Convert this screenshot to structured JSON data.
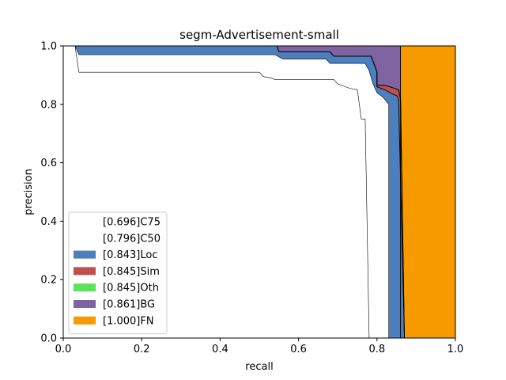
{
  "chart_data": {
    "type": "area",
    "title": "segm-Advertisement-small",
    "xlabel": "recall",
    "ylabel": "precision",
    "xlim": [
      0,
      1
    ],
    "ylim": [
      0,
      1
    ],
    "xticks": [
      "0.0",
      "0.2",
      "0.4",
      "0.6",
      "0.8",
      "1.0"
    ],
    "yticks": [
      "0.0",
      "0.2",
      "0.4",
      "0.6",
      "0.8",
      "1.0"
    ],
    "grid": false,
    "legend_position": "lower-left",
    "series": [
      {
        "name": "[0.696]C75",
        "fill": "#ffffff",
        "curve": [
          [
            0.03,
            1.0
          ],
          [
            0.04,
            0.91
          ],
          [
            0.3,
            0.91
          ],
          [
            0.5,
            0.91
          ],
          [
            0.51,
            0.895
          ],
          [
            0.53,
            0.89
          ],
          [
            0.54,
            0.885
          ],
          [
            0.69,
            0.885
          ],
          [
            0.7,
            0.87
          ],
          [
            0.73,
            0.855
          ],
          [
            0.75,
            0.85
          ],
          [
            0.76,
            0.75
          ],
          [
            0.77,
            0.75
          ],
          [
            0.78,
            0.0
          ]
        ]
      },
      {
        "name": "[0.796]C50",
        "fill": "#ffffff",
        "curve": [
          [
            0.03,
            1.0
          ],
          [
            0.04,
            0.97
          ],
          [
            0.3,
            0.97
          ],
          [
            0.54,
            0.97
          ],
          [
            0.56,
            0.955
          ],
          [
            0.67,
            0.955
          ],
          [
            0.68,
            0.94
          ],
          [
            0.77,
            0.94
          ],
          [
            0.78,
            0.915
          ],
          [
            0.79,
            0.87
          ],
          [
            0.8,
            0.84
          ],
          [
            0.815,
            0.825
          ],
          [
            0.83,
            0.8
          ],
          [
            0.83,
            0.0
          ]
        ]
      },
      {
        "name": "[0.843]Loc",
        "fill": "#4c7fbd",
        "curve": [
          [
            0.03,
            1.0
          ],
          [
            0.04,
            1.0
          ],
          [
            0.545,
            1.0
          ],
          [
            0.55,
            0.98
          ],
          [
            0.68,
            0.98
          ],
          [
            0.69,
            0.965
          ],
          [
            0.785,
            0.965
          ],
          [
            0.795,
            0.93
          ],
          [
            0.8,
            0.91
          ],
          [
            0.8,
            0.86
          ],
          [
            0.82,
            0.85
          ],
          [
            0.84,
            0.835
          ],
          [
            0.85,
            0.83
          ],
          [
            0.855,
            0.82
          ],
          [
            0.87,
            0.0
          ]
        ]
      },
      {
        "name": "[0.845]Sim",
        "fill": "#c0504d",
        "curve": [
          [
            0.03,
            1.0
          ],
          [
            0.04,
            1.0
          ],
          [
            0.545,
            1.0
          ],
          [
            0.55,
            0.98
          ],
          [
            0.68,
            0.98
          ],
          [
            0.69,
            0.965
          ],
          [
            0.785,
            0.965
          ],
          [
            0.795,
            0.93
          ],
          [
            0.8,
            0.91
          ],
          [
            0.8,
            0.865
          ],
          [
            0.82,
            0.865
          ],
          [
            0.845,
            0.855
          ],
          [
            0.855,
            0.85
          ],
          [
            0.86,
            0.82
          ],
          [
            0.87,
            0.0
          ]
        ]
      },
      {
        "name": "[0.845]Oth",
        "fill": "#5fe35f",
        "curve": [
          [
            0.03,
            1.0
          ],
          [
            0.04,
            1.0
          ],
          [
            0.545,
            1.0
          ],
          [
            0.55,
            0.98
          ],
          [
            0.68,
            0.98
          ],
          [
            0.69,
            0.965
          ],
          [
            0.785,
            0.965
          ],
          [
            0.795,
            0.93
          ],
          [
            0.8,
            0.91
          ],
          [
            0.8,
            0.865
          ],
          [
            0.82,
            0.865
          ],
          [
            0.845,
            0.855
          ],
          [
            0.855,
            0.85
          ],
          [
            0.86,
            0.82
          ],
          [
            0.87,
            0.0
          ]
        ]
      },
      {
        "name": "[0.861]BG",
        "fill": "#8064a2",
        "curve": [
          [
            0.03,
            1.0
          ],
          [
            0.86,
            1.0
          ],
          [
            0.86,
            0.0
          ]
        ]
      },
      {
        "name": "[1.000]FN",
        "fill": "#f79a00",
        "curve": [
          [
            0.03,
            1.0
          ],
          [
            1.0,
            1.0
          ],
          [
            1.0,
            0.0
          ]
        ]
      }
    ]
  }
}
